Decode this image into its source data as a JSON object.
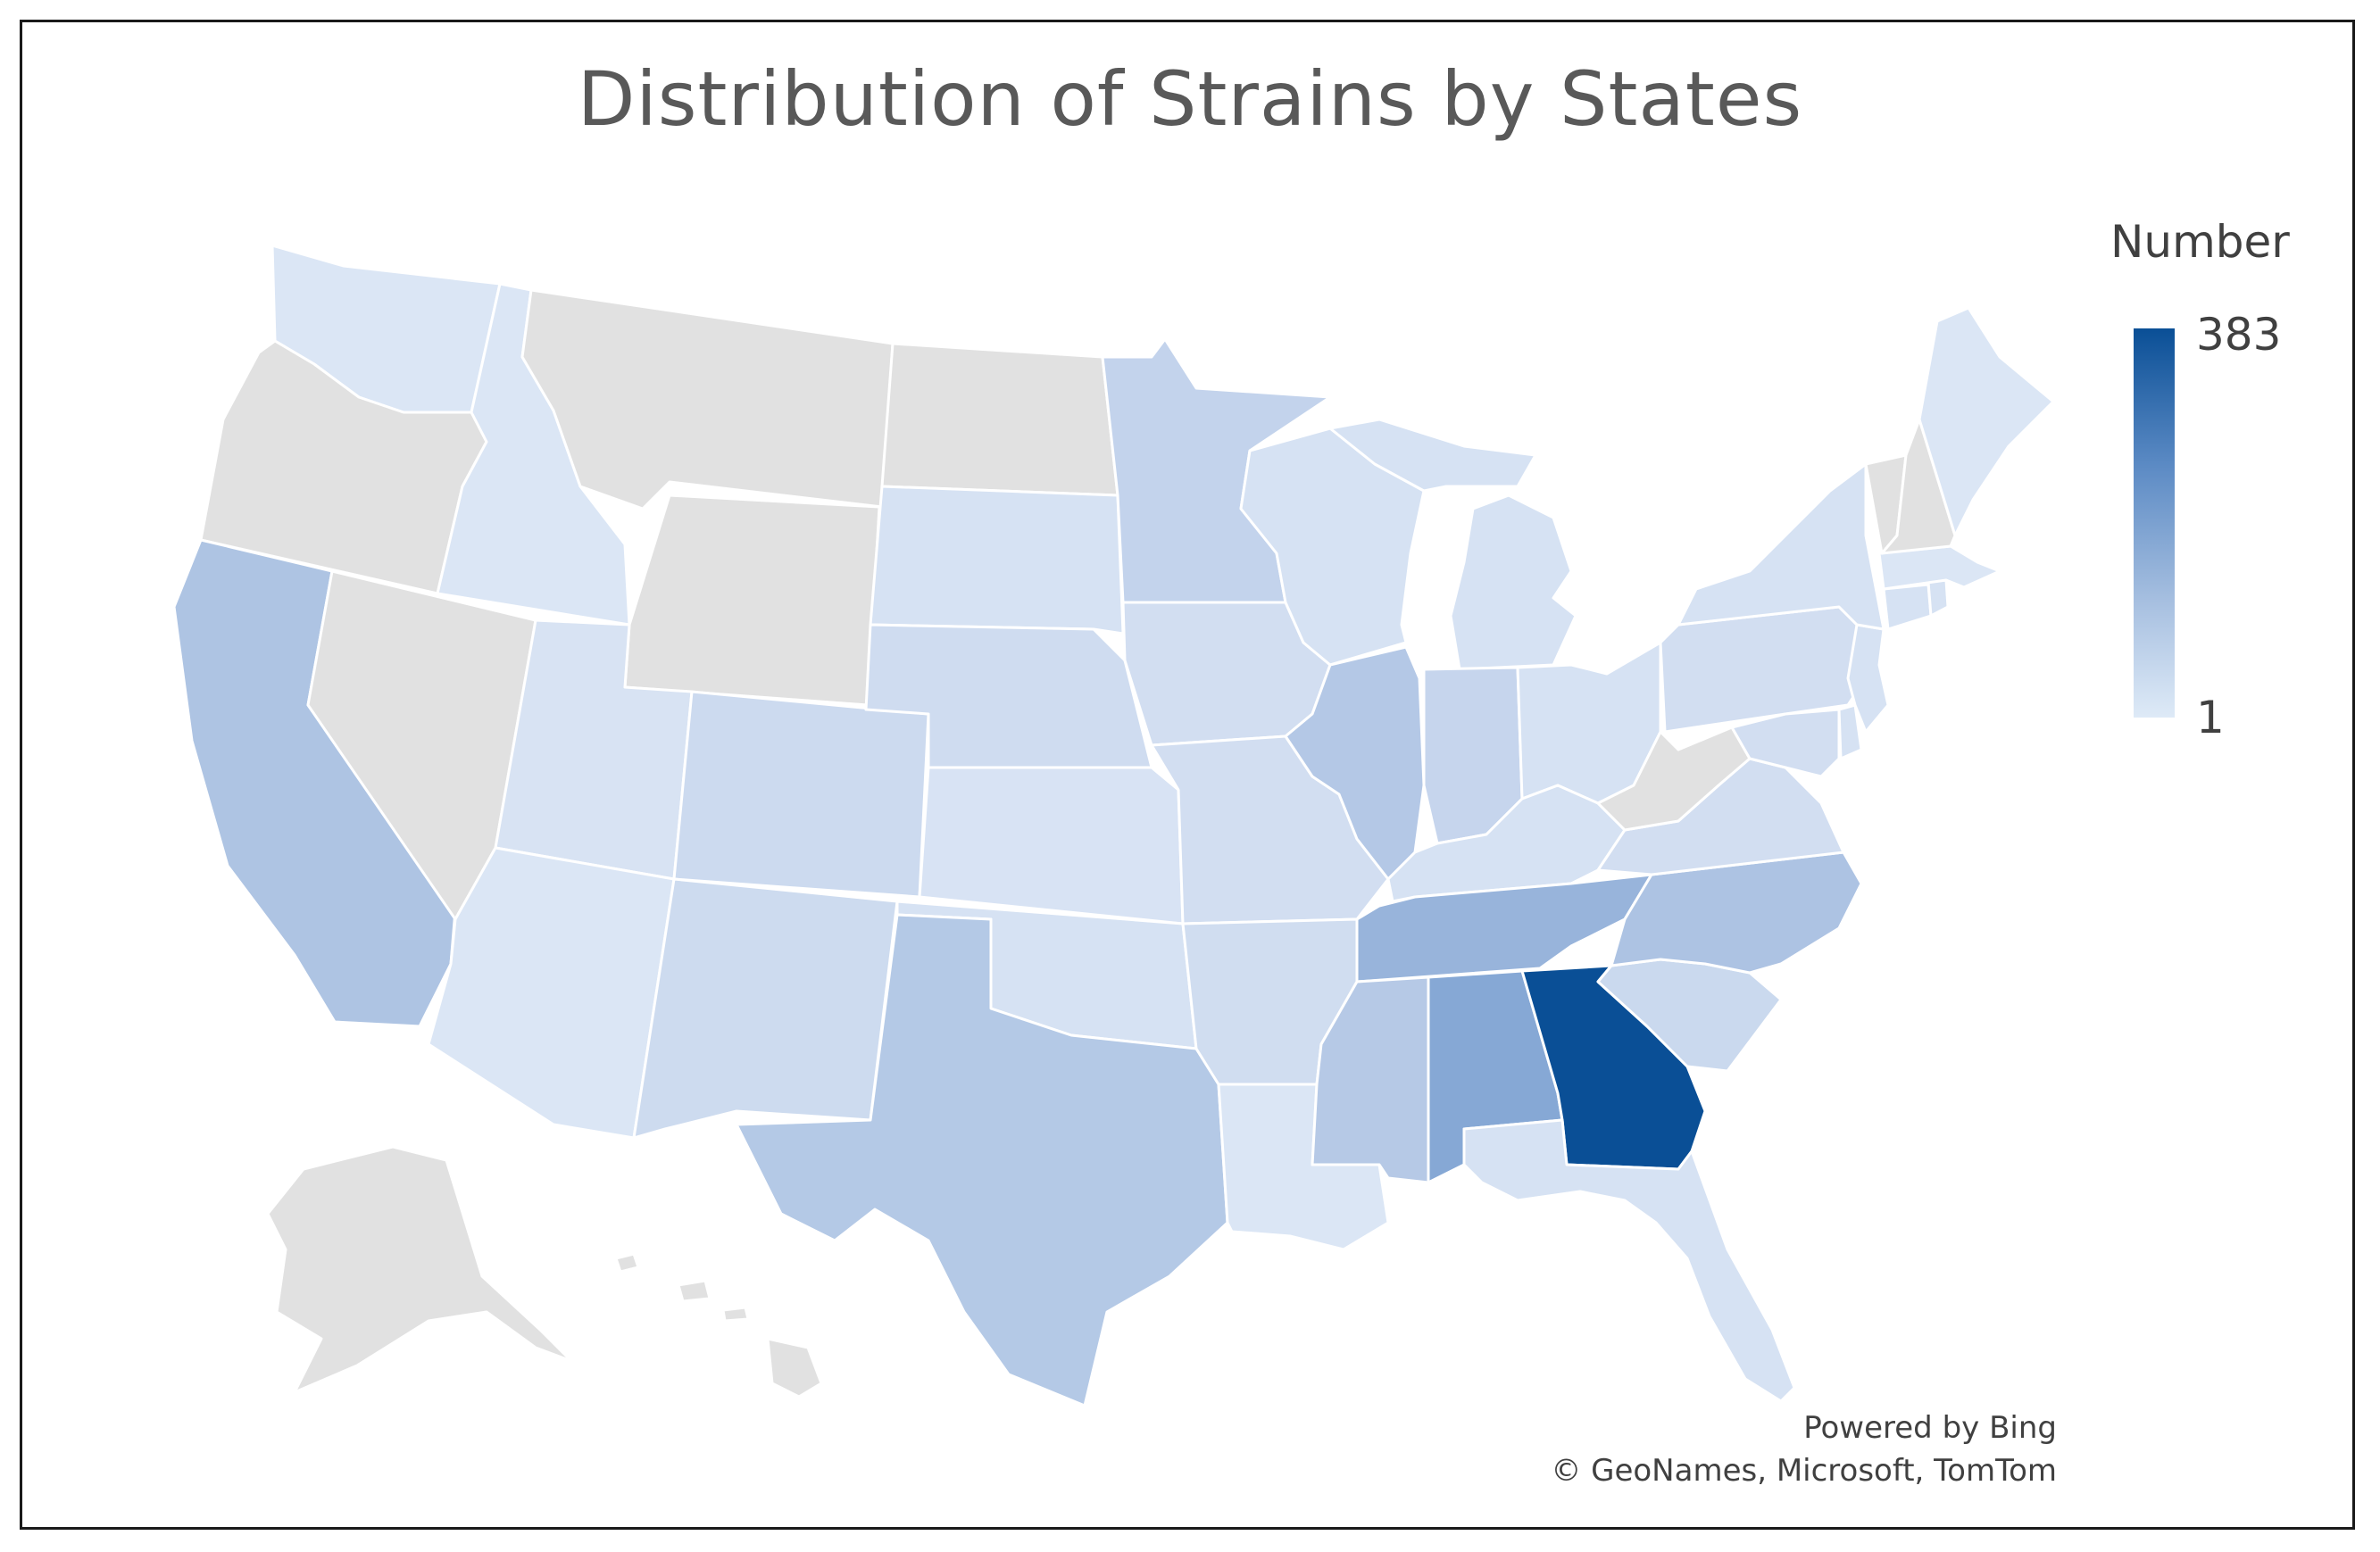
{
  "title": "Distribution of Strains by States",
  "legend": {
    "title": "Number",
    "max_label": "383",
    "min_label": "1",
    "color_high": "#0a4f96",
    "color_low": "#deeaf7",
    "no_data_color": "#e1e1e1"
  },
  "attribution": {
    "line1": "Powered by Bing",
    "line2": "© GeoNames, Microsoft, TomTom"
  },
  "chart_data": {
    "type": "choropleth",
    "region": "United States",
    "value_range": [
      1,
      383
    ],
    "states_with_data": [
      "Washington",
      "Idaho",
      "California",
      "Utah",
      "Arizona",
      "Colorado",
      "New Mexico",
      "South Dakota",
      "Nebraska",
      "Kansas",
      "Oklahoma",
      "Texas",
      "Minnesota",
      "Iowa",
      "Missouri",
      "Arkansas",
      "Louisiana",
      "Wisconsin",
      "Illinois",
      "Michigan",
      "Indiana",
      "Ohio",
      "Kentucky",
      "Tennessee",
      "Mississippi",
      "Alabama",
      "Georgia",
      "Florida",
      "South Carolina",
      "North Carolina",
      "Virginia",
      "Pennsylvania",
      "New York",
      "Maryland",
      "Delaware",
      "New Jersey",
      "Connecticut",
      "Massachusetts",
      "Rhode Island",
      "Maine"
    ],
    "states_no_data": [
      "Oregon",
      "Nevada",
      "Montana",
      "Wyoming",
      "North Dakota",
      "West Virginia",
      "Vermont",
      "New Hampshire",
      "Alaska",
      "Hawaii"
    ],
    "highest_state": "Georgia"
  },
  "states": [
    {
      "name": "washington",
      "color": "#dbe6f5"
    },
    {
      "name": "oregon",
      "color": "#e1e1e1"
    },
    {
      "name": "california",
      "color": "#aec4e3"
    },
    {
      "name": "nevada",
      "color": "#e1e1e1"
    },
    {
      "name": "idaho",
      "color": "#dbe6f5"
    },
    {
      "name": "montana",
      "color": "#e1e1e1"
    },
    {
      "name": "wyoming",
      "color": "#e1e1e1"
    },
    {
      "name": "utah",
      "color": "#d8e3f3"
    },
    {
      "name": "arizona",
      "color": "#dbe6f5"
    },
    {
      "name": "colorado",
      "color": "#ccdaef"
    },
    {
      "name": "new-mexico",
      "color": "#cddbef"
    },
    {
      "name": "north-dakota",
      "color": "#e1e1e1"
    },
    {
      "name": "south-dakota",
      "color": "#d6e2f3"
    },
    {
      "name": "nebraska",
      "color": "#cfdcf0"
    },
    {
      "name": "kansas",
      "color": "#d8e3f4"
    },
    {
      "name": "oklahoma",
      "color": "#d6e2f3"
    },
    {
      "name": "texas",
      "color": "#b4c9e6"
    },
    {
      "name": "minnesota",
      "color": "#c3d3ec"
    },
    {
      "name": "iowa",
      "color": "#d2def1"
    },
    {
      "name": "missouri",
      "color": "#d2def1"
    },
    {
      "name": "arkansas",
      "color": "#d0ddf0"
    },
    {
      "name": "louisiana",
      "color": "#dbe6f5"
    },
    {
      "name": "wisconsin",
      "color": "#d6e2f3"
    },
    {
      "name": "illinois",
      "color": "#b4c8e6"
    },
    {
      "name": "michigan",
      "color": "#d6e2f3"
    },
    {
      "name": "indiana",
      "color": "#c6d5ed"
    },
    {
      "name": "ohio",
      "color": "#d6e2f3"
    },
    {
      "name": "kentucky",
      "color": "#d6e2f3"
    },
    {
      "name": "tennessee",
      "color": "#98b4db"
    },
    {
      "name": "mississippi",
      "color": "#b6c9e6"
    },
    {
      "name": "alabama",
      "color": "#86a8d5"
    },
    {
      "name": "georgia",
      "color": "#0a4f96"
    },
    {
      "name": "florida",
      "color": "#d6e2f3"
    },
    {
      "name": "south-carolina",
      "color": "#cad9ee"
    },
    {
      "name": "north-carolina",
      "color": "#adc3e3"
    },
    {
      "name": "virginia",
      "color": "#d2def1"
    },
    {
      "name": "west-virginia",
      "color": "#e1e1e1"
    },
    {
      "name": "pennsylvania",
      "color": "#d2def1"
    },
    {
      "name": "new-york",
      "color": "#d6e2f3"
    },
    {
      "name": "maryland",
      "color": "#d2def1"
    },
    {
      "name": "delaware",
      "color": "#d6e2f3"
    },
    {
      "name": "new-jersey",
      "color": "#d6e2f3"
    },
    {
      "name": "connecticut",
      "color": "#d6e2f3"
    },
    {
      "name": "massachusetts",
      "color": "#dbe6f5"
    },
    {
      "name": "rhode-island",
      "color": "#d6e2f3"
    },
    {
      "name": "vermont",
      "color": "#e1e1e1"
    },
    {
      "name": "new-hampshire",
      "color": "#e1e1e1"
    },
    {
      "name": "maine",
      "color": "#dbe6f5"
    },
    {
      "name": "alaska",
      "color": "#e1e1e1"
    },
    {
      "name": "hawaii",
      "color": "#e1e1e1"
    }
  ]
}
